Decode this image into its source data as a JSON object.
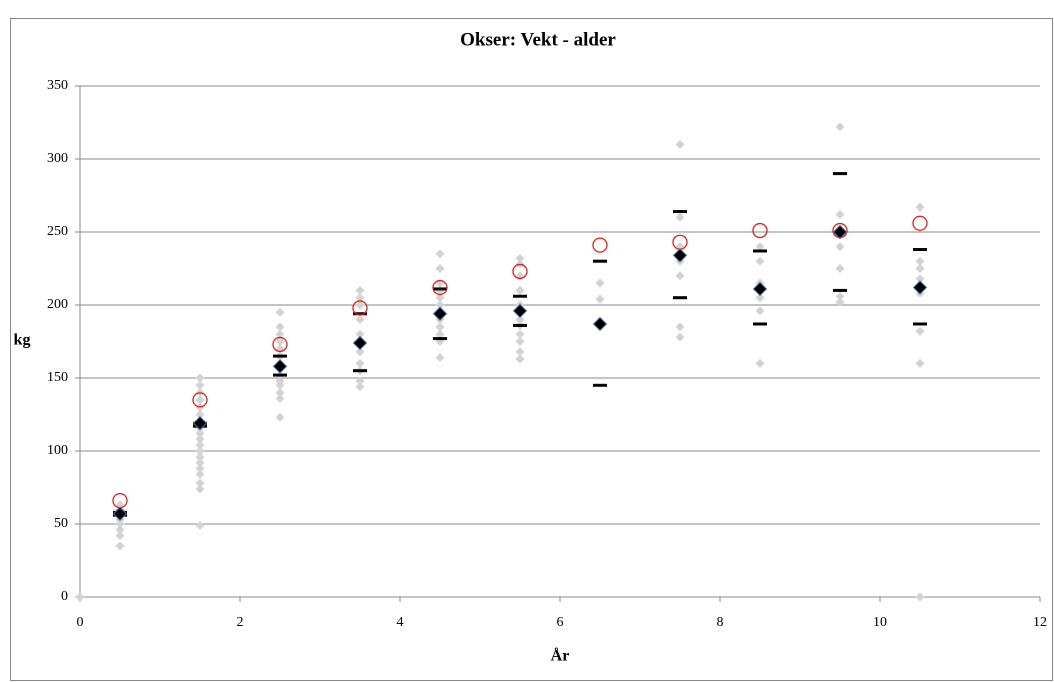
{
  "chart_data": {
    "type": "scatter",
    "title": "Okser: Vekt - alder",
    "x_label": "År",
    "y_label": "kg",
    "xlim": [
      0,
      12
    ],
    "xticks": [
      0,
      2,
      4,
      6,
      8,
      10,
      12
    ],
    "ylim": [
      0,
      350
    ],
    "yticks": [
      0,
      50,
      100,
      150,
      200,
      250,
      300,
      350
    ],
    "grid": true,
    "series": [
      {
        "marker": "diamond-small",
        "color": "#d3d3d3",
        "x": [
          0,
          0.5,
          0.5,
          0.5,
          0.5,
          0.5,
          0.5,
          0.5,
          0.5,
          1.5,
          1.5,
          1.5,
          1.5,
          1.5,
          1.5,
          1.5,
          1.5,
          1.5,
          1.5,
          1.5,
          1.5,
          1.5,
          1.5,
          1.5,
          1.5,
          1.5,
          1.5,
          1.5,
          2.5,
          2.5,
          2.5,
          2.5,
          2.5,
          2.5,
          2.5,
          2.5,
          2.5,
          2.5,
          2.5,
          2.5,
          2.5,
          2.5,
          3.5,
          3.5,
          3.5,
          3.5,
          3.5,
          3.5,
          3.5,
          3.5,
          3.5,
          3.5,
          3.5,
          4.5,
          4.5,
          4.5,
          4.5,
          4.5,
          4.5,
          4.5,
          4.5,
          4.5,
          4.5,
          4.5,
          4.5,
          5.5,
          5.5,
          5.5,
          5.5,
          5.5,
          5.5,
          5.5,
          5.5,
          5.5,
          5.5,
          5.5,
          5.5,
          6.5,
          6.5,
          6.5,
          7.5,
          7.5,
          7.5,
          7.5,
          7.5,
          7.5,
          7.5,
          8.5,
          8.5,
          8.5,
          8.5,
          8.5,
          8.5,
          9.5,
          9.5,
          9.5,
          9.5,
          9.5,
          9.5,
          9.5,
          10.5,
          10.5,
          10.5,
          10.5,
          10.5,
          10.5,
          10.5,
          10.5
        ],
        "values": [
          0,
          35,
          42,
          46,
          50,
          53,
          56,
          60,
          63,
          49,
          74,
          78,
          84,
          88,
          92,
          96,
          100,
          104,
          108,
          112,
          116,
          120,
          125,
          130,
          135,
          140,
          145,
          150,
          123,
          136,
          140,
          145,
          148,
          152,
          156,
          160,
          165,
          170,
          175,
          180,
          185,
          195,
          144,
          148,
          155,
          160,
          168,
          175,
          180,
          190,
          200,
          205,
          210,
          164,
          175,
          180,
          185,
          190,
          195,
          200,
          205,
          210,
          215,
          225,
          235,
          163,
          168,
          175,
          180,
          186,
          190,
          195,
          200,
          210,
          220,
          228,
          232,
          187,
          204,
          215,
          178,
          185,
          220,
          230,
          240,
          260,
          310,
          160,
          196,
          205,
          215,
          230,
          240,
          202,
          206,
          225,
          240,
          250,
          262,
          322,
          0,
          160,
          182,
          208,
          218,
          225,
          230,
          267
        ]
      },
      {
        "marker": "dash",
        "color": "#000000",
        "x": [
          0.5,
          1.5,
          2.5,
          3.5,
          4.5,
          5.5,
          6.5,
          7.5,
          8.5,
          9.5,
          10.5
        ],
        "values": [
          58,
          119,
          165,
          194,
          211,
          206,
          230,
          264,
          237,
          290,
          238
        ]
      },
      {
        "marker": "dash",
        "color": "#000000",
        "x": [
          0.5,
          1.5,
          2.5,
          3.5,
          4.5,
          5.5,
          6.5,
          7.5,
          8.5,
          9.5,
          10.5
        ],
        "values": [
          56,
          117,
          152,
          155,
          177,
          186,
          145,
          205,
          187,
          210,
          187
        ]
      },
      {
        "marker": "circle",
        "color": "#e0201b",
        "x": [
          0.5,
          1.5,
          2.5,
          3.5,
          4.5,
          5.5,
          6.5,
          7.5,
          8.5,
          9.5,
          10.5
        ],
        "values": [
          66,
          135,
          173,
          198,
          212,
          223,
          241,
          243,
          251,
          251,
          256
        ]
      },
      {
        "marker": "diamond",
        "color": "#000000",
        "x": [
          0.5,
          1.5,
          2.5,
          3.5,
          4.5,
          5.5,
          6.5,
          7.5,
          8.5,
          9.5,
          10.5
        ],
        "values": [
          57,
          119,
          158,
          174,
          194,
          196,
          187,
          234,
          211,
          250,
          212
        ]
      }
    ]
  }
}
